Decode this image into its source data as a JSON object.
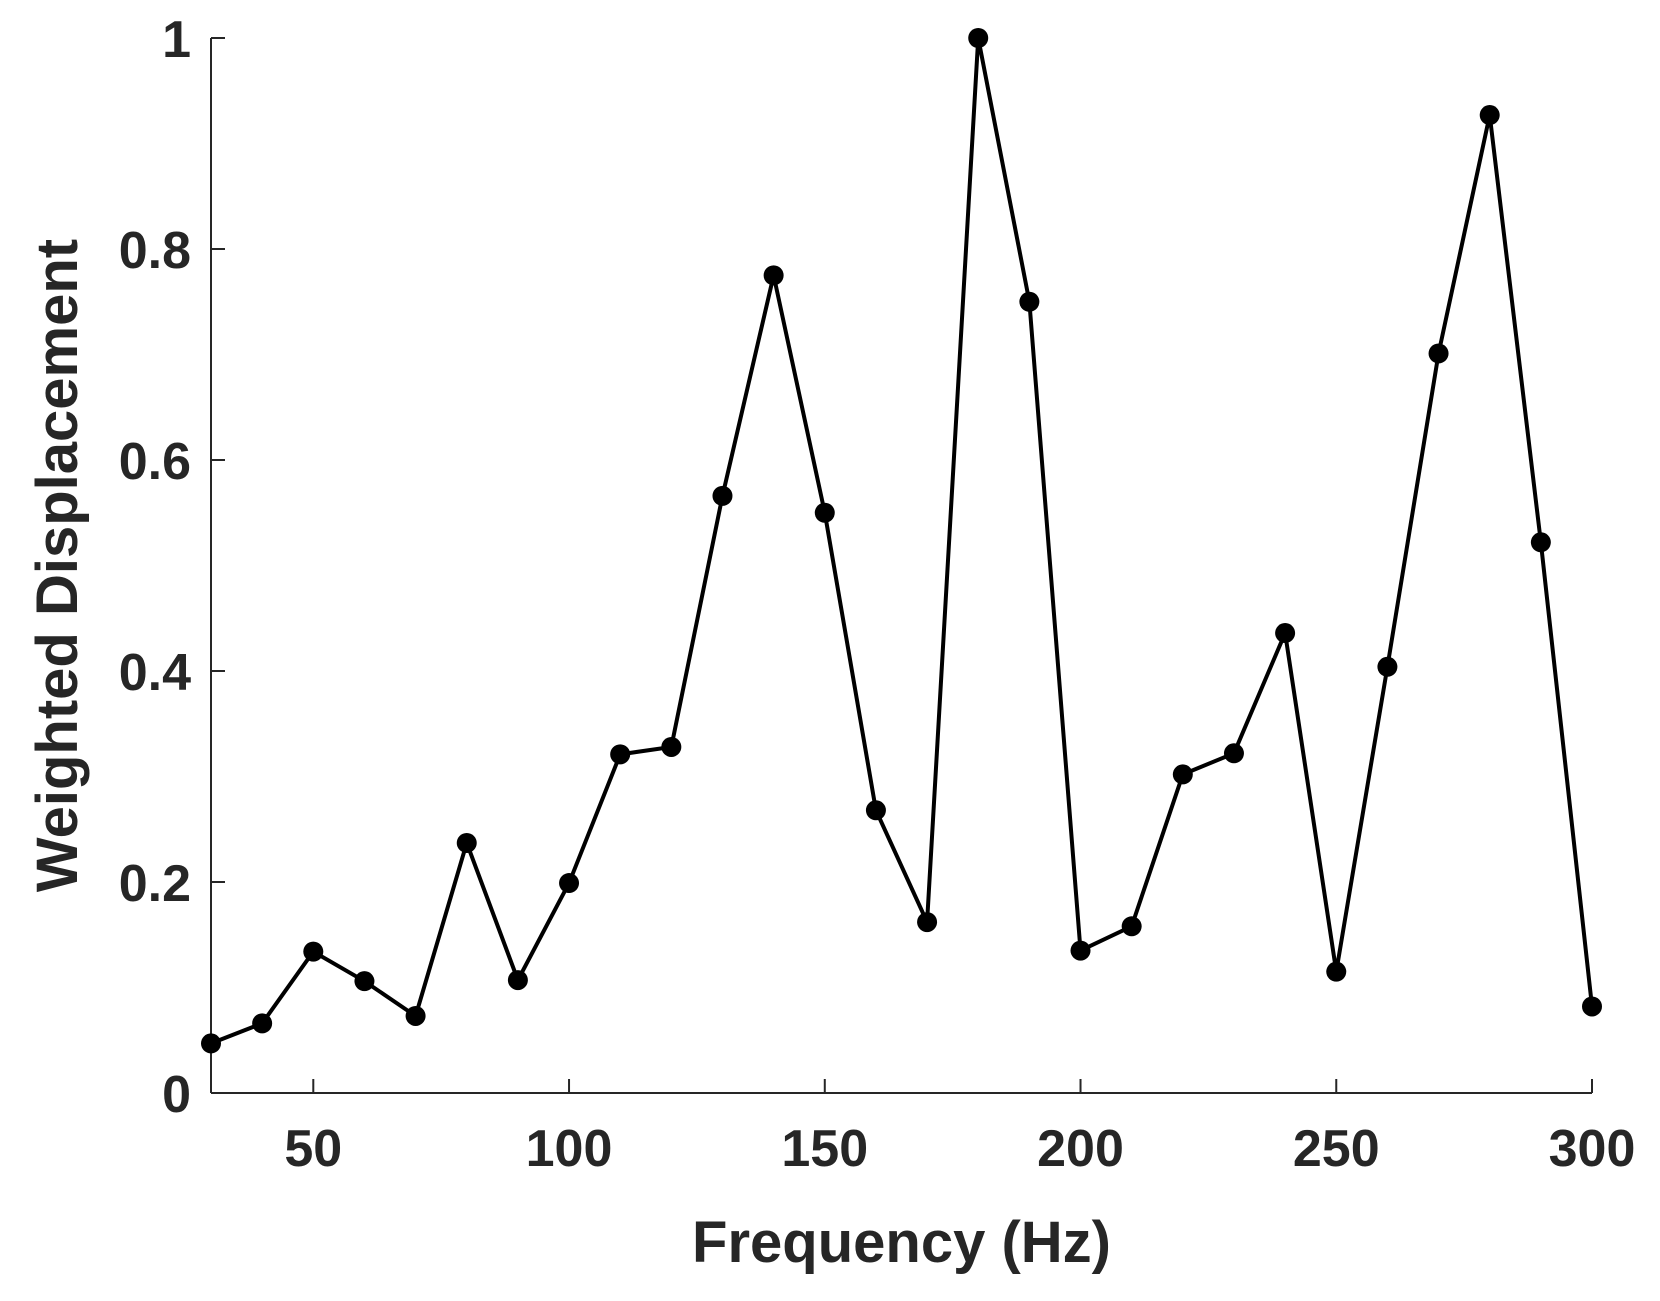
{
  "chart_data": {
    "type": "line",
    "title": "",
    "xlabel": "Frequency (Hz)",
    "ylabel": "Weighted Displacement",
    "xlim": [
      30,
      300
    ],
    "ylim": [
      0,
      1
    ],
    "xticks": [
      50,
      100,
      150,
      200,
      250,
      300
    ],
    "xtick_labels": [
      "50",
      "100",
      "150",
      "200",
      "250",
      "300"
    ],
    "yticks": [
      0,
      0.2,
      0.4,
      0.6,
      0.8,
      1
    ],
    "ytick_labels": [
      "0",
      "0.2",
      "0.4",
      "0.6",
      "0.8",
      "1"
    ],
    "grid": false,
    "legend": "none",
    "series": [
      {
        "color": "#000000",
        "marker": "filled-circle",
        "x": [
          30,
          40,
          50,
          60,
          70,
          80,
          90,
          100,
          110,
          120,
          130,
          140,
          150,
          160,
          170,
          180,
          190,
          200,
          210,
          220,
          230,
          240,
          250,
          260,
          270,
          280,
          290,
          300
        ],
        "y": [
          0.047,
          0.066,
          0.134,
          0.106,
          0.073,
          0.237,
          0.107,
          0.199,
          0.321,
          0.328,
          0.566,
          0.775,
          0.55,
          0.268,
          0.162,
          1.0,
          0.75,
          0.135,
          0.158,
          0.302,
          0.322,
          0.436,
          0.115,
          0.404,
          0.701,
          0.927,
          0.522,
          0.082
        ]
      }
    ]
  }
}
